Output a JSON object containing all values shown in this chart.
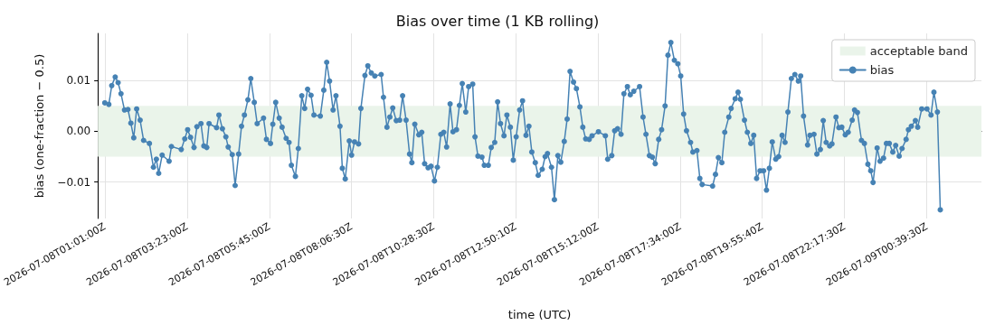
{
  "chart_data": {
    "type": "line",
    "title": "Bias over time (1 KB rolling)",
    "xlabel": "time (UTC)",
    "ylabel": "bias (one-fraction − 0.5)",
    "x": [
      "2026-07-08T01:01",
      "2026-07-08T01:08",
      "2026-07-08T01:13",
      "2026-07-08T01:19",
      "2026-07-08T01:24",
      "2026-07-08T01:29",
      "2026-07-08T01:35",
      "2026-07-08T01:41",
      "2026-07-08T01:46",
      "2026-07-08T01:51",
      "2026-07-08T01:56",
      "2026-07-08T02:02",
      "2026-07-08T02:08",
      "2026-07-08T02:18",
      "2026-07-08T02:25",
      "2026-07-08T02:30",
      "2026-07-08T02:34",
      "2026-07-08T02:40",
      "2026-07-08T02:52",
      "2026-07-08T02:56",
      "2026-07-08T03:13",
      "2026-07-08T03:19",
      "2026-07-08T03:24",
      "2026-07-08T03:29",
      "2026-07-08T03:35",
      "2026-07-08T03:40",
      "2026-07-08T03:47",
      "2026-07-08T03:52",
      "2026-07-08T03:57",
      "2026-07-08T04:01",
      "2026-07-08T04:14",
      "2026-07-08T04:18",
      "2026-07-08T04:24",
      "2026-07-08T04:30",
      "2026-07-08T04:34",
      "2026-07-08T04:41",
      "2026-07-08T04:46",
      "2026-07-08T04:52",
      "2026-07-08T04:57",
      "2026-07-08T05:02",
      "2026-07-08T05:08",
      "2026-07-08T05:13",
      "2026-07-08T05:19",
      "2026-07-08T05:24",
      "2026-07-08T05:35",
      "2026-07-08T05:40",
      "2026-07-08T05:47",
      "2026-07-08T05:51",
      "2026-07-08T05:56",
      "2026-07-08T06:02",
      "2026-07-08T06:07",
      "2026-07-08T06:14",
      "2026-07-08T06:19",
      "2026-07-08T06:23",
      "2026-07-08T06:30",
      "2026-07-08T06:35",
      "2026-07-08T06:41",
      "2026-07-08T06:46",
      "2026-07-08T06:51",
      "2026-07-08T06:57",
      "2026-07-08T07:02",
      "2026-07-08T07:13",
      "2026-07-08T07:19",
      "2026-07-08T07:24",
      "2026-07-08T07:29",
      "2026-07-08T07:35",
      "2026-07-08T07:40",
      "2026-07-08T07:47",
      "2026-07-08T07:51",
      "2026-07-08T07:56",
      "2026-07-08T08:03",
      "2026-07-08T08:07",
      "2026-07-08T08:12",
      "2026-07-08T08:19",
      "2026-07-08T08:23",
      "2026-07-08T08:30",
      "2026-07-08T08:35",
      "2026-07-08T08:41",
      "2026-07-08T08:47",
      "2026-07-08T08:58",
      "2026-07-08T09:02",
      "2026-07-08T09:08",
      "2026-07-08T09:13",
      "2026-07-08T09:18",
      "2026-07-08T09:24",
      "2026-07-08T09:30",
      "2026-07-08T09:35",
      "2026-07-08T09:41",
      "2026-07-08T09:47",
      "2026-07-08T09:51",
      "2026-07-08T09:56",
      "2026-07-08T10:03",
      "2026-07-08T10:08",
      "2026-07-08T10:13",
      "2026-07-08T10:19",
      "2026-07-08T10:24",
      "2026-07-08T10:30",
      "2026-07-08T10:35",
      "2026-07-08T10:41",
      "2026-07-08T10:46",
      "2026-07-08T10:51",
      "2026-07-08T10:57",
      "2026-07-08T11:02",
      "2026-07-08T11:08",
      "2026-07-08T11:13",
      "2026-07-08T11:18",
      "2026-07-08T11:24",
      "2026-07-08T11:29",
      "2026-07-08T11:36",
      "2026-07-08T11:40",
      "2026-07-08T11:45",
      "2026-07-08T11:52",
      "2026-07-08T11:56",
      "2026-07-08T12:03",
      "2026-07-08T12:08",
      "2026-07-08T12:14",
      "2026-07-08T12:19",
      "2026-07-08T12:24",
      "2026-07-08T12:30",
      "2026-07-08T12:35",
      "2026-07-08T12:41",
      "2026-07-08T12:46",
      "2026-07-08T12:51",
      "2026-07-08T12:57",
      "2026-07-08T13:02",
      "2026-07-08T13:08",
      "2026-07-08T13:13",
      "2026-07-08T13:18",
      "2026-07-08T13:24",
      "2026-07-08T13:29",
      "2026-07-08T13:36",
      "2026-07-08T13:41",
      "2026-07-08T13:45",
      "2026-07-08T13:52",
      "2026-07-08T13:57",
      "2026-07-08T14:03",
      "2026-07-08T14:08",
      "2026-07-08T14:14",
      "2026-07-08T14:19",
      "2026-07-08T14:24",
      "2026-07-08T14:30",
      "2026-07-08T14:35",
      "2026-07-08T14:41",
      "2026-07-08T14:46",
      "2026-07-08T14:51",
      "2026-07-08T14:57",
      "2026-07-08T15:02",
      "2026-07-08T15:13",
      "2026-07-08T15:25",
      "2026-07-08T15:29",
      "2026-07-08T15:36",
      "2026-07-08T15:41",
      "2026-07-08T15:46",
      "2026-07-08T15:52",
      "2026-07-08T15:57",
      "2026-07-08T16:03",
      "2026-07-08T16:08",
      "2026-07-08T16:14",
      "2026-07-08T16:24",
      "2026-07-08T16:30",
      "2026-07-08T16:35",
      "2026-07-08T16:41",
      "2026-07-08T16:46",
      "2026-07-08T16:51",
      "2026-07-08T16:57",
      "2026-07-08T17:02",
      "2026-07-08T17:08",
      "2026-07-08T17:13",
      "2026-07-08T17:18",
      "2026-07-08T17:24",
      "2026-07-08T17:30",
      "2026-07-08T17:35",
      "2026-07-08T17:40",
      "2026-07-08T17:45",
      "2026-07-08T17:52",
      "2026-07-08T17:56",
      "2026-07-08T18:03",
      "2026-07-08T18:08",
      "2026-07-08T18:12",
      "2026-07-08T18:30",
      "2026-07-08T18:35",
      "2026-07-08T18:40",
      "2026-07-08T18:46",
      "2026-07-08T18:51",
      "2026-07-08T18:58",
      "2026-07-08T19:02",
      "2026-07-08T19:09",
      "2026-07-08T19:14",
      "2026-07-08T19:18",
      "2026-07-08T19:25",
      "2026-07-08T19:30",
      "2026-07-08T19:36",
      "2026-07-08T19:41",
      "2026-07-08T19:46",
      "2026-07-08T19:52",
      "2026-07-08T19:58",
      "2026-07-08T20:03",
      "2026-07-08T20:08",
      "2026-07-08T20:13",
      "2026-07-08T20:19",
      "2026-07-08T20:24",
      "2026-07-08T20:30",
      "2026-07-08T20:35",
      "2026-07-08T20:40",
      "2026-07-08T20:46",
      "2026-07-08T20:52",
      "2026-07-08T20:58",
      "2026-07-08T21:02",
      "2026-07-08T21:07",
      "2026-07-08T21:14",
      "2026-07-08T21:18",
      "2026-07-08T21:25",
      "2026-07-08T21:30",
      "2026-07-08T21:36",
      "2026-07-08T21:41",
      "2026-07-08T21:46",
      "2026-07-08T21:52",
      "2026-07-08T21:56",
      "2026-07-08T22:03",
      "2026-07-08T22:08",
      "2026-07-08T22:13",
      "2026-07-08T22:19",
      "2026-07-08T22:24",
      "2026-07-08T22:31",
      "2026-07-08T22:35",
      "2026-07-08T22:40",
      "2026-07-08T22:47",
      "2026-07-08T22:52",
      "2026-07-08T22:58",
      "2026-07-08T23:03",
      "2026-07-08T23:07",
      "2026-07-08T23:14",
      "2026-07-08T23:19",
      "2026-07-08T23:25",
      "2026-07-08T23:30",
      "2026-07-08T23:35",
      "2026-07-08T23:41",
      "2026-07-08T23:46",
      "2026-07-08T23:52",
      "2026-07-08T23:57",
      "2026-07-09T00:04",
      "2026-07-09T00:08",
      "2026-07-09T00:13",
      "2026-07-09T00:20",
      "2026-07-09T00:24",
      "2026-07-09T00:31",
      "2026-07-09T00:40",
      "2026-07-09T00:47",
      "2026-07-09T00:52",
      "2026-07-09T00:58",
      "2026-07-09T01:03"
    ],
    "series": [
      {
        "name": "bias",
        "color": "#4682b4",
        "values": [
          0.0056,
          0.0053,
          0.009,
          0.0107,
          0.0096,
          0.0074,
          0.0042,
          0.0043,
          0.0016,
          -0.0013,
          0.0044,
          0.0022,
          -0.0018,
          -0.0024,
          -0.0071,
          -0.0055,
          -0.0083,
          -0.0047,
          -0.0059,
          -0.003,
          -0.0036,
          -0.0015,
          0.0003,
          -0.0012,
          -0.0032,
          0.0009,
          0.0015,
          -0.0029,
          -0.0032,
          0.0015,
          0.0007,
          0.0032,
          0.0005,
          -0.0011,
          -0.0031,
          -0.0046,
          -0.0107,
          -0.0045,
          0.001,
          0.0032,
          0.0062,
          0.0104,
          0.0057,
          0.0015,
          0.0026,
          -0.0016,
          -0.0024,
          0.0014,
          0.0057,
          0.0026,
          0.0008,
          -0.0014,
          -0.0022,
          -0.0067,
          -0.0089,
          -0.0034,
          0.007,
          0.0045,
          0.0083,
          0.0071,
          0.0032,
          0.003,
          0.0081,
          0.0136,
          0.0099,
          0.0042,
          0.007,
          0.001,
          -0.0073,
          -0.0094,
          -0.0019,
          -0.0047,
          -0.0021,
          -0.0025,
          0.0045,
          0.011,
          0.0129,
          0.0115,
          0.0109,
          0.0112,
          0.0067,
          0.0008,
          0.0028,
          0.0046,
          0.0021,
          0.0022,
          0.007,
          0.0022,
          -0.0045,
          -0.0062,
          0.0014,
          -0.0007,
          -0.0002,
          -0.0064,
          -0.0072,
          -0.0069,
          -0.0098,
          -0.0071,
          -0.0006,
          -0.0002,
          -0.0031,
          0.0054,
          -0.0001,
          0.0003,
          0.0051,
          0.0094,
          0.0038,
          0.0088,
          0.0093,
          -0.0011,
          -0.0049,
          -0.0051,
          -0.0067,
          -0.0067,
          -0.0032,
          -0.0022,
          0.0058,
          0.0015,
          -0.0009,
          0.0032,
          0.0008,
          -0.0057,
          -0.0011,
          0.0042,
          0.006,
          -0.0008,
          0.001,
          -0.0041,
          -0.0062,
          -0.0087,
          -0.0075,
          -0.005,
          -0.0044,
          -0.0071,
          -0.0135,
          -0.0048,
          -0.0061,
          -0.002,
          0.0024,
          0.0118,
          0.0097,
          0.0084,
          0.0048,
          0.0008,
          -0.0015,
          -0.0016,
          -0.0009,
          -0.0001,
          -0.0009,
          -0.0055,
          -0.0048,
          0.0001,
          0.0005,
          -0.0006,
          0.0074,
          0.0088,
          0.0072,
          0.0079,
          0.0088,
          0.0028,
          -0.0006,
          -0.0048,
          -0.0051,
          -0.0064,
          -0.0016,
          0.0003,
          0.005,
          0.015,
          0.0175,
          0.014,
          0.0133,
          0.0109,
          0.0034,
          0.0001,
          -0.0022,
          -0.0041,
          -0.0038,
          -0.0093,
          -0.0105,
          -0.0108,
          -0.0085,
          -0.0052,
          -0.0062,
          -0.0002,
          0.0028,
          0.0045,
          0.0064,
          0.0077,
          0.0063,
          0.0022,
          -0.0002,
          -0.0024,
          -0.0008,
          -0.0093,
          -0.0078,
          -0.0078,
          -0.0116,
          -0.0073,
          -0.0021,
          -0.0055,
          -0.005,
          -0.0008,
          -0.0022,
          0.0038,
          0.0104,
          0.0112,
          0.0099,
          0.0109,
          0.003,
          -0.0027,
          -0.0008,
          -0.0006,
          -0.0045,
          -0.0036,
          0.0021,
          -0.0022,
          -0.0029,
          -0.0025,
          0.0028,
          0.0007,
          0.0008,
          -0.0007,
          -0.0002,
          0.0022,
          0.0042,
          0.0037,
          -0.0018,
          -0.0024,
          -0.0065,
          -0.0078,
          -0.0101,
          -0.0033,
          -0.0059,
          -0.0053,
          -0.0024,
          -0.0024,
          -0.0041,
          -0.0028,
          -0.0049,
          -0.0034,
          -0.0016,
          0.0003,
          0.001,
          0.0021,
          0.0008,
          0.0044,
          0.0044,
          0.0032,
          0.0077,
          0.0038,
          -0.0155
        ]
      }
    ],
    "bands": [
      {
        "axis": "y",
        "from": -0.005,
        "to": 0.005,
        "label": "acceptable band",
        "color": "#eaf4ea"
      }
    ],
    "xlim": [
      "2026-07-08T00:49",
      "2026-07-09T02:14"
    ],
    "xticks": [
      {
        "value": "2026-07-08T01:01:00",
        "label": "2026-07-08T01:01:00Z"
      },
      {
        "value": "2026-07-08T03:23:00",
        "label": "2026-07-08T03:23:00Z"
      },
      {
        "value": "2026-07-08T05:45:00",
        "label": "2026-07-08T05:45:00Z"
      },
      {
        "value": "2026-07-08T08:06:30",
        "label": "2026-07-08T08:06:30Z"
      },
      {
        "value": "2026-07-08T10:28:30",
        "label": "2026-07-08T10:28:30Z"
      },
      {
        "value": "2026-07-08T12:50:10",
        "label": "2026-07-08T12:50:10Z"
      },
      {
        "value": "2026-07-08T15:12:00",
        "label": "2026-07-08T15:12:00Z"
      },
      {
        "value": "2026-07-08T17:34:00",
        "label": "2026-07-08T17:34:00Z"
      },
      {
        "value": "2026-07-08T19:55:40",
        "label": "2026-07-08T19:55:40Z"
      },
      {
        "value": "2026-07-08T22:17:30",
        "label": "2026-07-08T22:17:30Z"
      },
      {
        "value": "2026-07-09T00:39:30",
        "label": "2026-07-09T00:39:30Z"
      }
    ],
    "ylim": [
      -0.0172,
      0.0193
    ],
    "yticks": [
      {
        "value": -0.01,
        "label": "−0.01"
      },
      {
        "value": 0,
        "label": "0.00"
      },
      {
        "value": 0.01,
        "label": "0.01"
      }
    ],
    "grid": true,
    "legend": "top right",
    "marker": "circle",
    "line_style": "solid"
  }
}
